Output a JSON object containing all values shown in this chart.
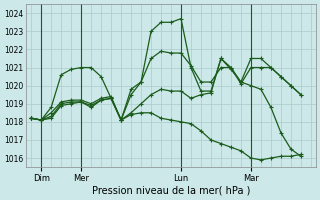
{
  "background_color": "#cce8e8",
  "grid_color": "#aacccc",
  "line_color": "#1a5c1a",
  "title": "Pression niveau de la mer( hPa )",
  "ylabel_values": [
    1016,
    1017,
    1018,
    1019,
    1020,
    1021,
    1022,
    1023,
    1024
  ],
  "ylim": [
    1015.5,
    1024.5
  ],
  "xlim": [
    -0.5,
    28.5
  ],
  "xtick_positions": [
    1,
    5,
    15,
    22
  ],
  "xtick_labels": [
    "Dim",
    "Mer",
    "Lun",
    "Mar"
  ],
  "vline_positions": [
    1,
    5,
    15,
    22
  ],
  "series": [
    {
      "x": [
        0,
        1,
        2,
        3,
        4,
        5,
        6,
        7,
        8,
        9,
        10,
        11,
        12,
        13,
        14,
        15,
        16,
        17,
        18,
        19,
        20,
        21,
        22,
        23,
        24,
        25,
        26,
        27
      ],
      "y": [
        1018.2,
        1018.1,
        1018.8,
        1020.6,
        1020.9,
        1021.0,
        1021.0,
        1020.5,
        1019.3,
        1018.1,
        1019.5,
        1020.2,
        1023.0,
        1023.5,
        1023.5,
        1023.7,
        1021.0,
        1019.7,
        1019.7,
        1021.5,
        1021.0,
        1020.1,
        1021.0,
        1021.0,
        1021.0,
        1020.5,
        1020.0,
        1019.5
      ]
    },
    {
      "x": [
        0,
        1,
        2,
        3,
        4,
        5,
        6,
        7,
        8,
        9,
        10,
        11,
        12,
        13,
        14,
        15,
        16,
        17,
        18,
        19,
        20,
        21,
        22,
        23,
        24,
        25,
        26,
        27
      ],
      "y": [
        1018.2,
        1018.1,
        1018.5,
        1019.1,
        1019.2,
        1019.2,
        1019.0,
        1019.3,
        1019.4,
        1018.1,
        1019.8,
        1020.2,
        1021.5,
        1021.9,
        1021.8,
        1021.8,
        1021.1,
        1020.2,
        1020.2,
        1021.0,
        1021.0,
        1020.2,
        1021.5,
        1021.5,
        1021.0,
        1020.5,
        1020.0,
        1019.5
      ]
    },
    {
      "x": [
        0,
        1,
        2,
        3,
        4,
        5,
        6,
        7,
        8,
        9,
        10,
        11,
        12,
        13,
        14,
        15,
        16,
        17,
        18,
        19,
        20,
        21,
        22,
        23,
        24,
        25,
        26,
        27
      ],
      "y": [
        1018.2,
        1018.1,
        1018.3,
        1019.0,
        1019.1,
        1019.1,
        1018.9,
        1019.2,
        1019.3,
        1018.1,
        1018.5,
        1019.0,
        1019.5,
        1019.8,
        1019.7,
        1019.7,
        1019.3,
        1019.5,
        1019.6,
        1021.5,
        1020.9,
        1020.2,
        1020.0,
        1019.8,
        1018.8,
        1017.4,
        1016.5,
        1016.1
      ]
    },
    {
      "x": [
        0,
        1,
        2,
        3,
        4,
        5,
        6,
        7,
        8,
        9,
        10,
        11,
        12,
        13,
        14,
        15,
        16,
        17,
        18,
        19,
        20,
        21,
        22,
        23,
        24,
        25,
        26,
        27
      ],
      "y": [
        1018.2,
        1018.1,
        1018.2,
        1018.9,
        1019.0,
        1019.1,
        1018.8,
        1019.2,
        1019.3,
        1018.1,
        1018.4,
        1018.5,
        1018.5,
        1018.2,
        1018.1,
        1018.0,
        1017.9,
        1017.5,
        1017.0,
        1016.8,
        1016.6,
        1016.4,
        1016.0,
        1015.9,
        1016.0,
        1016.1,
        1016.1,
        1016.2
      ]
    }
  ]
}
